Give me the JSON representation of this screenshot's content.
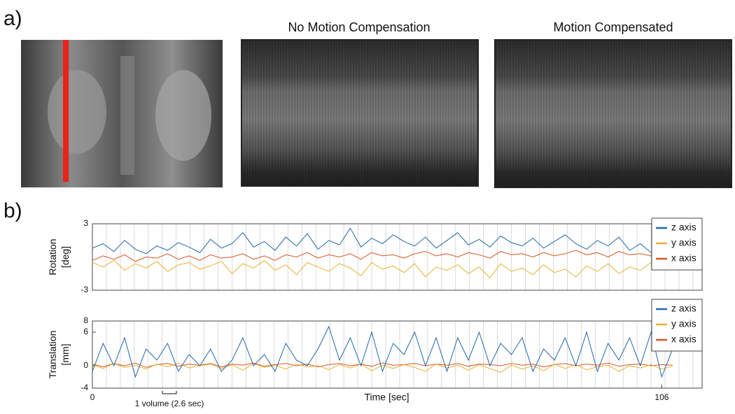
{
  "panel_a": {
    "label": "a)",
    "titles": [
      "No Motion Compensation",
      "Motion Compensated"
    ]
  },
  "panel_b": {
    "label": "b)"
  },
  "chart_data": [
    {
      "type": "line",
      "ylabel": [
        "Rotation",
        "[deg]"
      ],
      "xlim": [
        0,
        113.5
      ],
      "ylim": [
        -3,
        3
      ],
      "yticks": [
        -3,
        3
      ],
      "legend": "top-right",
      "x": [
        0,
        2,
        4,
        6,
        8,
        10,
        12,
        14,
        16,
        18,
        20,
        22,
        24,
        26,
        28,
        30,
        32,
        34,
        36,
        38,
        40,
        42,
        44,
        46,
        48,
        50,
        52,
        54,
        56,
        58,
        60,
        62,
        64,
        66,
        68,
        70,
        72,
        74,
        76,
        78,
        80,
        82,
        84,
        86,
        88,
        90,
        92,
        94,
        96,
        98,
        100,
        102,
        104,
        106,
        108
      ],
      "series": [
        {
          "name": "z axis",
          "color": "#2166ac",
          "values": [
            0.8,
            1.2,
            0.5,
            1.5,
            0.7,
            0.3,
            1.0,
            0.6,
            1.3,
            0.9,
            0.4,
            1.6,
            0.8,
            1.2,
            2.2,
            0.9,
            1.4,
            0.6,
            1.8,
            1.0,
            2.1,
            0.7,
            1.5,
            1.1,
            2.6,
            0.9,
            1.7,
            1.2,
            2.0,
            1.4,
            1.0,
            1.8,
            0.8,
            1.5,
            2.2,
            1.1,
            1.6,
            0.9,
            1.9,
            1.3,
            1.0,
            1.7,
            0.8,
            1.4,
            2.0,
            1.2,
            0.7,
            1.5,
            1.0,
            1.8,
            0.6,
            1.2,
            0.4,
            0.9,
            0.5
          ]
        },
        {
          "name": "y axis",
          "color": "#e8b030",
          "values": [
            -0.5,
            -0.9,
            -0.3,
            -1.2,
            -0.6,
            -1.0,
            -0.4,
            -1.3,
            -0.7,
            -0.5,
            -1.1,
            -0.8,
            -0.4,
            -1.5,
            -0.6,
            -1.0,
            -0.3,
            -1.2,
            -0.7,
            -1.6,
            -0.5,
            -0.9,
            -1.3,
            -0.6,
            -1.0,
            -1.7,
            -0.5,
            -1.1,
            -0.8,
            -1.4,
            -0.6,
            -1.8,
            -0.9,
            -1.2,
            -0.7,
            -1.5,
            -0.9,
            -1.9,
            -0.6,
            -1.3,
            -1.0,
            -1.6,
            -0.7,
            -1.4,
            -1.1,
            -1.8,
            -0.8,
            -1.3,
            -0.6,
            -1.5,
            -0.9,
            -1.2,
            -0.5,
            -1.0,
            -0.7
          ]
        },
        {
          "name": "x axis",
          "color": "#d9541e",
          "values": [
            -0.3,
            0.1,
            -0.2,
            0.2,
            -0.4,
            0.0,
            -0.1,
            0.3,
            -0.2,
            0.1,
            -0.3,
            0.2,
            -0.1,
            0.0,
            0.3,
            -0.2,
            0.1,
            -0.3,
            0.2,
            0.0,
            0.4,
            -0.1,
            0.2,
            0.0,
            0.3,
            -0.2,
            0.4,
            0.1,
            0.2,
            -0.1,
            0.3,
            0.5,
            0.1,
            0.3,
            0.0,
            0.4,
            0.2,
            -0.1,
            0.5,
            0.2,
            0.3,
            0.0,
            0.4,
            0.1,
            0.3,
            0.6,
            0.2,
            0.4,
            0.0,
            0.5,
            0.2,
            0.3,
            0.1,
            0.4,
            0.2
          ]
        }
      ]
    },
    {
      "type": "line",
      "ylabel": [
        "Translation",
        "[mm]"
      ],
      "xlabel": "Time [sec]",
      "xlim": [
        0,
        113.5
      ],
      "ylim": [
        -4,
        8
      ],
      "yticks": [
        -4,
        0,
        6,
        8
      ],
      "xticks": [
        0,
        106
      ],
      "legend": "top-right",
      "annotation": {
        "text": "1 volume (2.6 sec)",
        "volume_sec": 2.6
      },
      "x": [
        0,
        2,
        4,
        6,
        8,
        10,
        12,
        14,
        16,
        18,
        20,
        22,
        24,
        26,
        28,
        30,
        32,
        34,
        36,
        38,
        40,
        42,
        44,
        46,
        48,
        50,
        52,
        54,
        56,
        58,
        60,
        62,
        64,
        66,
        68,
        70,
        72,
        74,
        76,
        78,
        80,
        82,
        84,
        86,
        88,
        90,
        92,
        94,
        96,
        98,
        100,
        102,
        104,
        106,
        108
      ],
      "series": [
        {
          "name": "z axis",
          "color": "#2166ac",
          "values": [
            -1,
            4,
            0,
            5,
            -2,
            3,
            1,
            4,
            -1,
            2,
            0,
            3,
            -1,
            1,
            5,
            0,
            2,
            -1,
            4,
            1,
            0,
            3,
            7,
            1,
            5,
            0,
            6,
            -1,
            4,
            2,
            6,
            0,
            5,
            -1,
            5,
            1,
            6,
            0,
            4,
            2,
            5,
            -1,
            3,
            1,
            5,
            0,
            6,
            -1,
            4,
            1,
            5,
            0,
            6,
            -2,
            3
          ]
        },
        {
          "name": "y axis",
          "color": "#e8b030",
          "values": [
            0.2,
            -0.5,
            0.4,
            -0.3,
            0.1,
            -0.6,
            0.3,
            -0.2,
            0.5,
            -0.4,
            0.0,
            0.3,
            -0.5,
            0.2,
            -0.8,
            0.4,
            -0.3,
            0.1,
            -0.6,
            0.3,
            -0.2,
            0.0,
            -0.7,
            0.2,
            -0.4,
            0.3,
            -0.9,
            0.1,
            -0.5,
            0.2,
            -0.3,
            -1.0,
            0.3,
            -0.4,
            0.1,
            -0.8,
            0.2,
            -0.5,
            -1.2,
            0.1,
            -0.6,
            0.0,
            -0.9,
            0.3,
            -0.5,
            0.2,
            -0.7,
            -0.2,
            0.1,
            -1.0,
            0.0,
            -0.4,
            0.2,
            -0.6,
            -0.1
          ]
        },
        {
          "name": "x axis",
          "color": "#d9541e",
          "values": [
            0.3,
            -0.2,
            0.4,
            0.0,
            0.5,
            -0.3,
            0.2,
            0.4,
            -0.1,
            0.3,
            0.1,
            0.4,
            -0.2,
            0.3,
            0.1,
            0.5,
            -0.1,
            0.2,
            0.4,
            0.0,
            0.3,
            -0.2,
            0.2,
            0.4,
            0.0,
            0.3,
            -0.1,
            0.5,
            0.1,
            0.2,
            0.4,
            0.0,
            0.3,
            0.1,
            0.4,
            -0.1,
            0.3,
            0.2,
            0.0,
            0.4,
            0.1,
            0.3,
            -0.2,
            0.2,
            0.4,
            0.0,
            0.3,
            0.1,
            0.5,
            -0.1,
            0.2,
            0.3,
            0.0,
            0.2,
            0.1
          ]
        }
      ]
    }
  ]
}
